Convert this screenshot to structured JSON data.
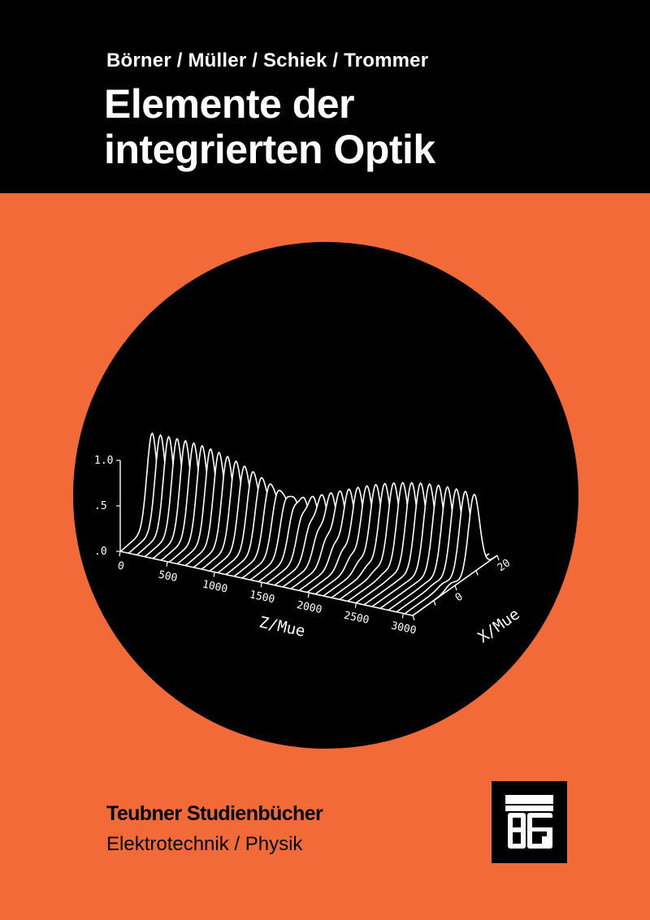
{
  "cover": {
    "authors": "Börner / Müller / Schiek / Trommer",
    "title_line1": "Elemente der",
    "title_line2": "integrierten Optik",
    "series": "Teubner Studienbücher",
    "subject": "Elektrotechnik / Physik",
    "publisher_logo_text": "TBG",
    "colors": {
      "band": "#000000",
      "background": "#F26A38",
      "text_light": "#FFFFFF",
      "circle": "#000000"
    }
  },
  "chart_data": {
    "type": "line",
    "style": "3d-waterfall",
    "xlabel": "Z/Mue",
    "ylabel": "X/Mue",
    "zlabel": "",
    "z_ticks": [
      "0",
      "500",
      "1000",
      "1500",
      "2000",
      "2500",
      "3000"
    ],
    "x_ticks": [
      "0",
      "20"
    ],
    "y_ticks": [
      ".0",
      ".5",
      "1.0"
    ],
    "z_range": [
      0,
      3100
    ],
    "x_range": [
      -20,
      20
    ],
    "y_range": [
      0,
      1.0
    ],
    "grid": false,
    "series": [
      {
        "z": [
          0,
          500,
          1000,
          1500,
          2000,
          2500,
          3000
        ],
        "peak_guide_1": [
          1.0,
          0.92,
          0.71,
          0.43,
          0.17,
          0.02,
          0.03
        ],
        "peak_guide_2": [
          0.0,
          0.08,
          0.29,
          0.57,
          0.83,
          0.98,
          0.97
        ]
      }
    ]
  }
}
